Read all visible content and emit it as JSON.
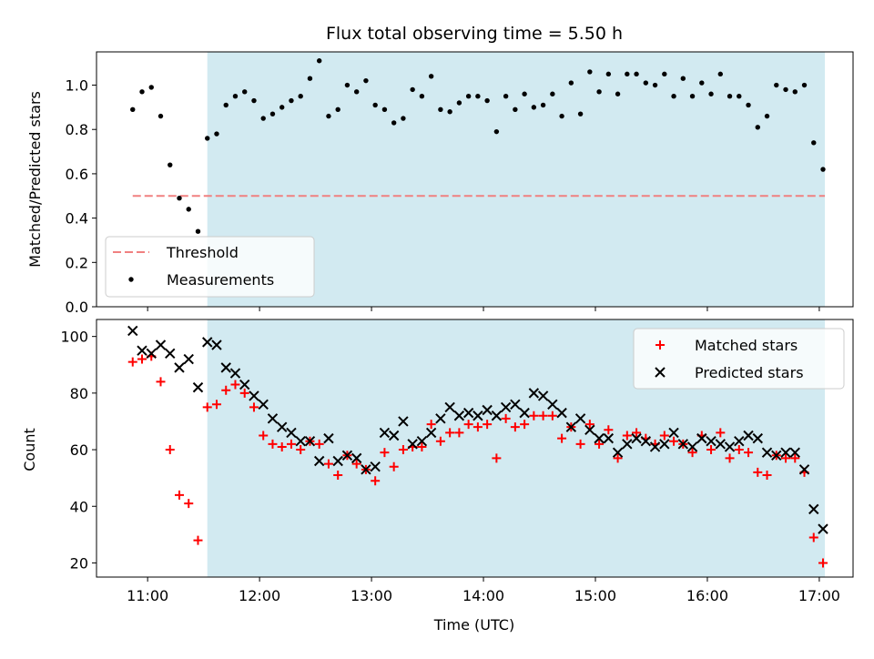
{
  "chart_data": {
    "title": "Flux total observing time = 5.50 h",
    "xlabel": "Time (UTC)",
    "x_ticks": [
      "11:00",
      "12:00",
      "13:00",
      "14:00",
      "15:00",
      "16:00",
      "17:00"
    ],
    "observing_window": {
      "start": "11:32",
      "end": "17:03"
    },
    "colors": {
      "shade": "#add8e6",
      "threshold": "#f08080",
      "matched": "#ff0000",
      "predicted": "#000000",
      "measurements": "#000000"
    },
    "panels": [
      {
        "type": "scatter",
        "ylabel": "Matched/Predicted stars",
        "ylim": [
          0,
          1.15
        ],
        "y_ticks": [
          "0.0",
          "0.2",
          "0.4",
          "0.6",
          "0.8",
          "1.0"
        ],
        "legend_position": "lower-left",
        "series": [
          {
            "name": "Threshold",
            "style": "dashed-line",
            "x": [
              "10:52",
              "17:03"
            ],
            "y": [
              0.5,
              0.5
            ]
          },
          {
            "name": "Measurements",
            "style": "dot",
            "x": [
              "10:52",
              "10:57",
              "11:02",
              "11:07",
              "11:12",
              "11:17",
              "11:22",
              "11:27",
              "11:32",
              "11:37",
              "11:42",
              "11:47",
              "11:52",
              "11:57",
              "12:02",
              "12:07",
              "12:12",
              "12:17",
              "12:22",
              "12:27",
              "12:32",
              "12:37",
              "12:42",
              "12:47",
              "12:52",
              "12:57",
              "13:02",
              "13:07",
              "13:12",
              "13:17",
              "13:22",
              "13:27",
              "13:32",
              "13:37",
              "13:42",
              "13:47",
              "13:52",
              "13:57",
              "14:02",
              "14:07",
              "14:12",
              "14:17",
              "14:22",
              "14:27",
              "14:32",
              "14:37",
              "14:42",
              "14:47",
              "14:52",
              "14:57",
              "15:02",
              "15:07",
              "15:12",
              "15:17",
              "15:22",
              "15:27",
              "15:32",
              "15:37",
              "15:42",
              "15:47",
              "15:52",
              "15:57",
              "16:02",
              "16:07",
              "16:12",
              "16:17",
              "16:22",
              "16:27",
              "16:32",
              "16:37",
              "16:42",
              "16:47",
              "16:52",
              "16:57",
              "17:02"
            ],
            "y": [
              0.89,
              0.97,
              0.99,
              0.86,
              0.64,
              0.49,
              0.44,
              0.34,
              0.76,
              0.78,
              0.91,
              0.95,
              0.97,
              0.93,
              0.85,
              0.87,
              0.9,
              0.93,
              0.95,
              1.03,
              1.11,
              0.86,
              0.89,
              1.0,
              0.97,
              1.02,
              0.91,
              0.89,
              0.83,
              0.85,
              0.98,
              0.95,
              1.04,
              0.89,
              0.88,
              0.92,
              0.95,
              0.95,
              0.93,
              0.79,
              0.95,
              0.89,
              0.96,
              0.9,
              0.91,
              0.96,
              0.86,
              1.01,
              0.87,
              1.06,
              0.97,
              1.05,
              0.96,
              1.05,
              1.05,
              1.01,
              1.0,
              1.05,
              0.95,
              1.03,
              0.95,
              1.01,
              0.96,
              1.05,
              0.95,
              0.95,
              0.91,
              0.81,
              0.86,
              1.0,
              0.98,
              0.97,
              1.0,
              0.74,
              0.62
            ]
          }
        ]
      },
      {
        "type": "scatter",
        "ylabel": "Count",
        "ylim": [
          15,
          106
        ],
        "y_ticks": [
          "20",
          "40",
          "60",
          "80",
          "100"
        ],
        "legend_position": "upper-right",
        "series": [
          {
            "name": "Matched stars",
            "marker": "plus",
            "x": [
              "10:52",
              "10:57",
              "11:02",
              "11:07",
              "11:12",
              "11:17",
              "11:22",
              "11:27",
              "11:32",
              "11:37",
              "11:42",
              "11:47",
              "11:52",
              "11:57",
              "12:02",
              "12:07",
              "12:12",
              "12:17",
              "12:22",
              "12:27",
              "12:32",
              "12:37",
              "12:42",
              "12:47",
              "12:52",
              "12:57",
              "13:02",
              "13:07",
              "13:12",
              "13:17",
              "13:22",
              "13:27",
              "13:32",
              "13:37",
              "13:42",
              "13:47",
              "13:52",
              "13:57",
              "14:02",
              "14:07",
              "14:12",
              "14:17",
              "14:22",
              "14:27",
              "14:32",
              "14:37",
              "14:42",
              "14:47",
              "14:52",
              "14:57",
              "15:02",
              "15:07",
              "15:12",
              "15:17",
              "15:22",
              "15:27",
              "15:32",
              "15:37",
              "15:42",
              "15:47",
              "15:52",
              "15:57",
              "16:02",
              "16:07",
              "16:12",
              "16:17",
              "16:22",
              "16:27",
              "16:32",
              "16:37",
              "16:42",
              "16:47",
              "16:52",
              "16:57",
              "17:02"
            ],
            "y": [
              91,
              92,
              93,
              84,
              60,
              44,
              41,
              28,
              75,
              76,
              81,
              83,
              80,
              75,
              65,
              62,
              61,
              62,
              60,
              63,
              62,
              55,
              51,
              58,
              55,
              53,
              49,
              59,
              54,
              60,
              61,
              61,
              69,
              63,
              66,
              66,
              69,
              68,
              69,
              57,
              71,
              68,
              69,
              72,
              72,
              72,
              64,
              68,
              62,
              69,
              62,
              67,
              57,
              65,
              66,
              64,
              62,
              65,
              63,
              62,
              59,
              65,
              60,
              66,
              57,
              60,
              59,
              52,
              51,
              58,
              57,
              57,
              52,
              29,
              20
            ]
          },
          {
            "name": "Predicted stars",
            "marker": "x",
            "x": [
              "10:52",
              "10:57",
              "11:02",
              "11:07",
              "11:12",
              "11:17",
              "11:22",
              "11:27",
              "11:32",
              "11:37",
              "11:42",
              "11:47",
              "11:52",
              "11:57",
              "12:02",
              "12:07",
              "12:12",
              "12:17",
              "12:22",
              "12:27",
              "12:32",
              "12:37",
              "12:42",
              "12:47",
              "12:52",
              "12:57",
              "13:02",
              "13:07",
              "13:12",
              "13:17",
              "13:22",
              "13:27",
              "13:32",
              "13:37",
              "13:42",
              "13:47",
              "13:52",
              "13:57",
              "14:02",
              "14:07",
              "14:12",
              "14:17",
              "14:22",
              "14:27",
              "14:32",
              "14:37",
              "14:42",
              "14:47",
              "14:52",
              "14:57",
              "15:02",
              "15:07",
              "15:12",
              "15:17",
              "15:22",
              "15:27",
              "15:32",
              "15:37",
              "15:42",
              "15:47",
              "15:52",
              "15:57",
              "16:02",
              "16:07",
              "16:12",
              "16:17",
              "16:22",
              "16:27",
              "16:32",
              "16:37",
              "16:42",
              "16:47",
              "16:52",
              "16:57",
              "17:02"
            ],
            "y": [
              102,
              95,
              94,
              97,
              94,
              89,
              92,
              82,
              98,
              97,
              89,
              87,
              83,
              79,
              76,
              71,
              68,
              66,
              63,
              63,
              56,
              64,
              56,
              58,
              57,
              53,
              54,
              66,
              65,
              70,
              62,
              63,
              66,
              71,
              75,
              72,
              73,
              72,
              74,
              72,
              75,
              76,
              73,
              80,
              79,
              76,
              73,
              68,
              71,
              67,
              64,
              64,
              59,
              62,
              64,
              63,
              61,
              62,
              66,
              62,
              61,
              64,
              63,
              62,
              61,
              63,
              65,
              64,
              59,
              58,
              59,
              59,
              53,
              39,
              32
            ]
          }
        ]
      }
    ]
  }
}
